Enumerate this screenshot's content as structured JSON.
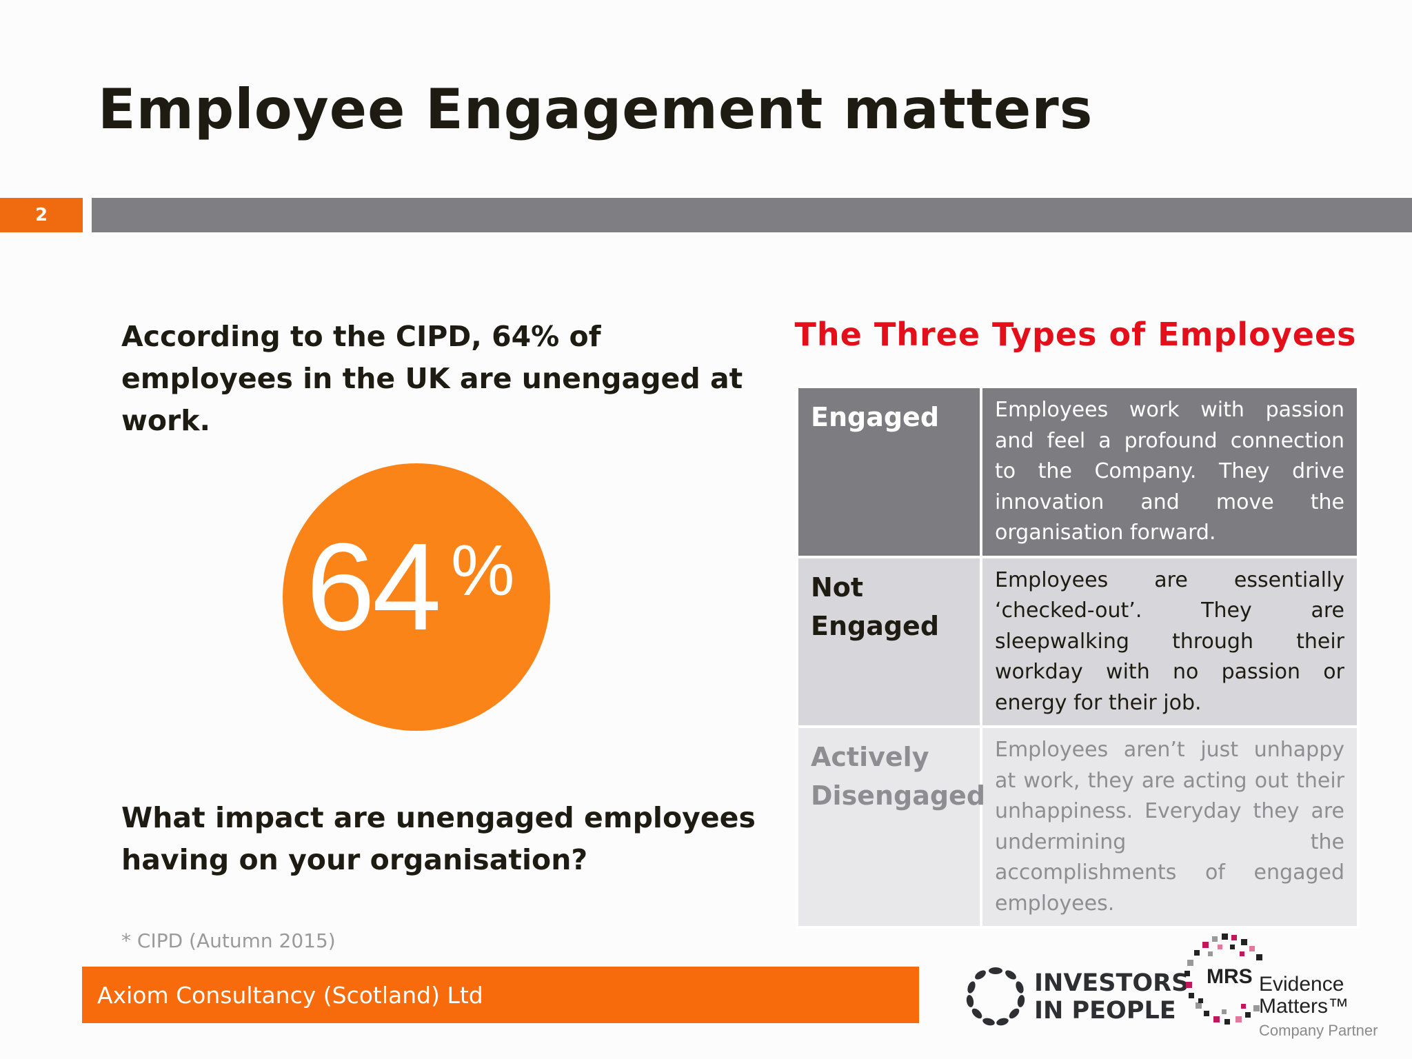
{
  "slide": {
    "title": "Employee Engagement matters",
    "slide_number": "2"
  },
  "left": {
    "stat_text": "According to the CIPD, 64% of employees in the UK are unengaged at work.",
    "badge_value": "64",
    "badge_unit": "%",
    "question": "What impact are unengaged employees having on your organisation?",
    "footnote": "* CIPD (Autumn 2015)"
  },
  "table": {
    "heading": "The Three Types of Employees",
    "rows": [
      {
        "type": "Engaged",
        "description": "Employees work with passion and feel a profound connection to the Company. They drive innovation and move the organisation forward."
      },
      {
        "type": "Not Engaged",
        "description": "Employees are essentially ‘checked-out’. They are sleepwalking through their workday with no passion or energy for their job."
      },
      {
        "type": "Actively Disengaged",
        "description": "Employees aren’t just unhappy at work, they are acting out their unhappiness. Everyday they are undermining the accomplishments of engaged employees."
      }
    ]
  },
  "footer": {
    "company": "Axiom Consultancy (Scotland) Ltd"
  },
  "logos": {
    "iip_line1": "INVESTORS",
    "iip_line2": "IN PEOPLE",
    "mrs_word": "MRS",
    "mrs_line1": "Evidence",
    "mrs_line2": "Matters™",
    "mrs_partner": "Company Partner"
  },
  "colors": {
    "accent_orange": "#f86b0d",
    "title_bar_gray": "#7f7e82",
    "heading_red": "#e3101c",
    "badge_orange": "#fb8419"
  }
}
